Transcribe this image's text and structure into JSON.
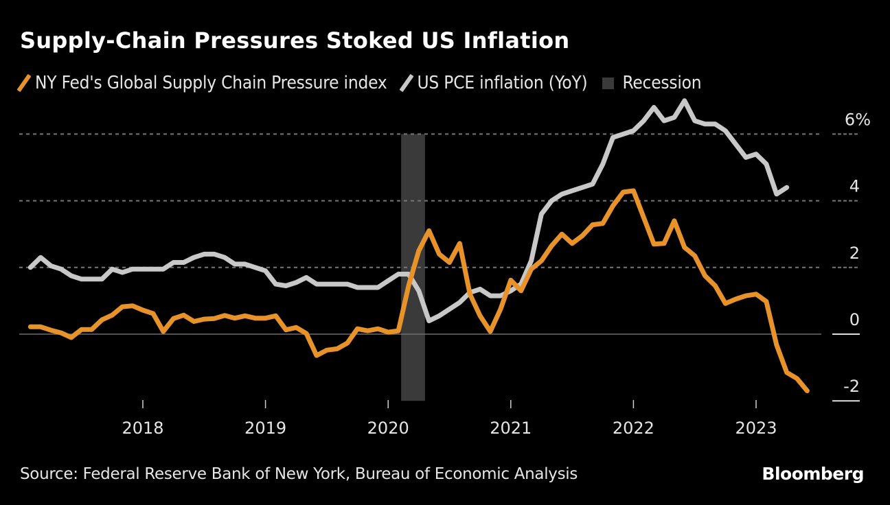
{
  "chart_data": {
    "type": "line",
    "title": "Supply-Chain Pressures Stoked US Inflation",
    "xlabel": "",
    "ylabel": "",
    "ylim": [
      -2,
      6
    ],
    "y_ticks": [
      {
        "value": 6,
        "label": "6%"
      },
      {
        "value": 4,
        "label": "4"
      },
      {
        "value": 2,
        "label": "2"
      },
      {
        "value": 0,
        "label": "0"
      },
      {
        "value": -2,
        "label": "-2"
      }
    ],
    "y_axis_position": "right",
    "grid": true,
    "x_range": [
      "2017-02",
      "2023-07"
    ],
    "x_ticks": [
      {
        "date": "2018-01",
        "label": "2018"
      },
      {
        "date": "2019-01",
        "label": "2019"
      },
      {
        "date": "2020-01",
        "label": "2020"
      },
      {
        "date": "2021-01",
        "label": "2021"
      },
      {
        "date": "2022-01",
        "label": "2022"
      },
      {
        "date": "2023-01",
        "label": "2023"
      }
    ],
    "legend_placement": "top-left",
    "series": [
      {
        "name": "NY Fed's Global Supply Chain Pressure index",
        "color": "#E8922A",
        "start": "2017-02",
        "frequency": "monthly",
        "values": [
          0.22,
          0.22,
          0.12,
          0.04,
          -0.1,
          0.14,
          0.14,
          0.43,
          0.57,
          0.82,
          0.85,
          0.72,
          0.62,
          0.08,
          0.47,
          0.57,
          0.38,
          0.45,
          0.47,
          0.56,
          0.48,
          0.55,
          0.48,
          0.48,
          0.55,
          0.13,
          0.2,
          0.02,
          -0.64,
          -0.48,
          -0.44,
          -0.27,
          0.16,
          0.1,
          0.16,
          0.06,
          0.1,
          1.45,
          2.5,
          3.1,
          2.4,
          2.15,
          2.72,
          1.2,
          0.55,
          0.08,
          0.75,
          1.62,
          1.3,
          1.95,
          2.2,
          2.65,
          3.0,
          2.72,
          2.95,
          3.28,
          3.32,
          3.85,
          4.26,
          4.3,
          3.5,
          2.7,
          2.72,
          3.4,
          2.6,
          2.35,
          1.75,
          1.45,
          0.92,
          1.05,
          1.15,
          1.2,
          0.98,
          -0.32,
          -1.15,
          -1.33,
          -1.7
        ]
      },
      {
        "name": "US PCE inflation (YoY)",
        "color": "#C8C8C8",
        "start": "2017-02",
        "frequency": "monthly",
        "values": [
          2.0,
          2.3,
          2.05,
          1.95,
          1.75,
          1.65,
          1.65,
          1.65,
          1.95,
          1.85,
          1.95,
          1.95,
          1.95,
          1.95,
          2.15,
          2.15,
          2.3,
          2.4,
          2.4,
          2.3,
          2.1,
          2.1,
          2.0,
          1.9,
          1.5,
          1.45,
          1.55,
          1.7,
          1.5,
          1.5,
          1.5,
          1.5,
          1.4,
          1.4,
          1.4,
          1.6,
          1.8,
          1.8,
          1.3,
          0.4,
          0.55,
          0.75,
          0.95,
          1.25,
          1.35,
          1.15,
          1.15,
          1.3,
          1.5,
          2.2,
          3.6,
          4.0,
          4.2,
          4.3,
          4.4,
          4.5,
          5.1,
          5.9,
          6.0,
          6.1,
          6.4,
          6.8,
          6.4,
          6.5,
          7.0,
          6.4,
          6.3,
          6.3,
          6.1,
          5.7,
          5.3,
          5.4,
          5.1,
          4.2,
          4.4
        ]
      }
    ],
    "shaded_regions": [
      {
        "name": "Recession",
        "start": "2020-02",
        "end": "2020-04",
        "color": "#3a3a3a"
      }
    ],
    "legend": [
      {
        "label": "NY Fed's Global Supply Chain Pressure index",
        "type": "line",
        "color": "#E8922A"
      },
      {
        "label": "US PCE inflation (YoY)",
        "type": "line",
        "color": "#C8C8C8"
      },
      {
        "label": "Recession",
        "type": "box",
        "color": "#3a3a3a"
      }
    ]
  },
  "footer": {
    "source": "Source: Federal Reserve Bank of New York, Bureau of Economic Analysis",
    "brand": "Bloomberg"
  },
  "colors": {
    "background": "#000000",
    "gridline": "#777777",
    "text": "#e6e6e6"
  }
}
